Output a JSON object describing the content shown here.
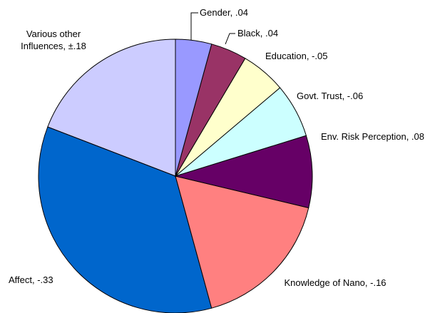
{
  "chart_data": {
    "type": "pie",
    "categories": [
      "Gender, .04",
      "Black, .04",
      "Education, -.05",
      "Govt. Trust, -.06",
      "Env. Risk Perception, .08",
      "Knowledge of Nano, -.16",
      "Affect, -.33",
      "Various other Influences, ±.18"
    ],
    "values": [
      0.04,
      0.04,
      -0.05,
      -0.06,
      0.08,
      -0.16,
      -0.33,
      0.18
    ],
    "colors": [
      "#9999ff",
      "#993366",
      "#ffffcc",
      "#ccffff",
      "#660066",
      "#ff8080",
      "#0066cc",
      "#ccccff"
    ]
  }
}
